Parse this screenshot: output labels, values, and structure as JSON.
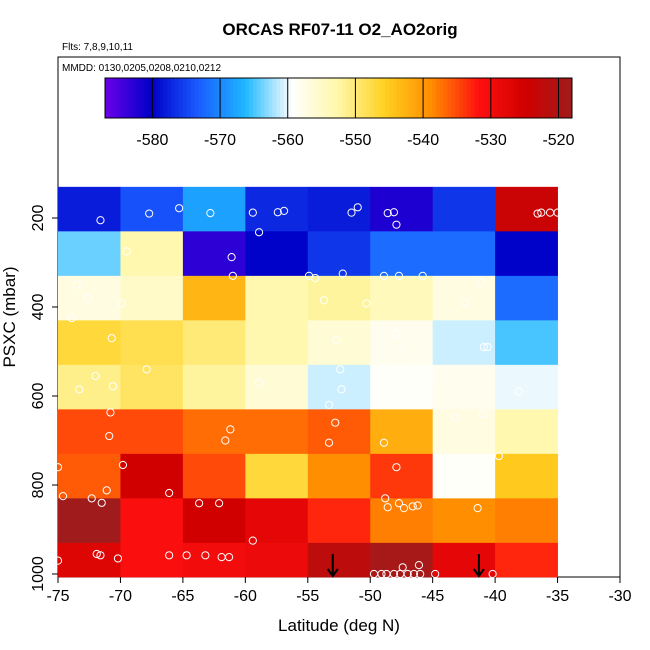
{
  "chart_data": {
    "type": "heatmap",
    "title": "ORCAS RF07-11 O2_AO2orig",
    "annotations": [
      "Flts: 7,8,9,10,11",
      "MMDD: 0130,0205,0208,0210,0212"
    ],
    "xlabel": "Latitude (deg N)",
    "ylabel": "PSXC (mbar)",
    "xlim": [
      -75,
      -30
    ],
    "ylim": [
      1000,
      100
    ],
    "xticks": [
      -75,
      -70,
      -65,
      -60,
      -55,
      -50,
      -45,
      -40,
      -35,
      -30
    ],
    "xtick_labels": [
      "-75",
      "-70",
      "-65",
      "-60",
      "-55",
      "-50",
      "-45",
      "-40",
      "-35",
      "-30"
    ],
    "yticks": [
      200,
      400,
      600,
      800,
      1000
    ],
    "ytick_labels": [
      "200",
      "400",
      "600",
      "800",
      "1000"
    ],
    "lat_bins": [
      -75,
      -70,
      -65,
      -60,
      -55,
      -50,
      -45,
      -40,
      -35
    ],
    "pressure_bins": [
      130,
      230,
      330,
      430,
      530,
      630,
      730,
      830,
      930,
      1030
    ],
    "z": [
      [
        -578,
        -574,
        -568,
        -577,
        -578,
        -582,
        -576,
        -524
      ],
      [
        -564,
        -553,
        -583,
        -580,
        -576,
        -572,
        -572,
        -580
      ],
      [
        -557,
        -555,
        -543,
        -553,
        -552,
        -554,
        -557,
        -572
      ],
      [
        -547,
        -548,
        -550,
        -553,
        -556,
        -558,
        -561,
        -565
      ],
      [
        -551,
        -549,
        -552,
        -556,
        -561,
        -559,
        -558,
        -560
      ],
      [
        -535,
        -535,
        -537,
        -537,
        -536,
        -542,
        -557,
        -553
      ],
      [
        -536,
        -525,
        -535,
        -547,
        -539,
        -534,
        -559,
        -545
      ],
      [
        -518,
        -531,
        -525,
        -528,
        -533,
        -538,
        -539,
        -538
      ],
      [
        -527,
        -531,
        -530,
        -529,
        -522,
        -519,
        -528,
        -533
      ]
    ],
    "colorbar": {
      "zlim": [
        -587,
        -518
      ],
      "ticks": [
        -580,
        -570,
        -560,
        -550,
        -540,
        -530,
        -520
      ],
      "tick_labels": [
        "-580",
        "-570",
        "-560",
        "-550",
        "-540",
        "-530",
        "-520"
      ],
      "colors": [
        "#6a00e8",
        "#0000c8",
        "#1a5cff",
        "#1eb8ff",
        "#ffffff",
        "#fff7a8",
        "#ffd020",
        "#ff8c00",
        "#ff1010",
        "#d00000",
        "#a01c1c"
      ]
    },
    "points": [
      [
        -71.6,
        205
      ],
      [
        -67.7,
        190
      ],
      [
        -65.3,
        178
      ],
      [
        -62.8,
        189
      ],
      [
        -59.4,
        188
      ],
      [
        -57.4,
        187
      ],
      [
        -56.9,
        184
      ],
      [
        -51.5,
        188
      ],
      [
        -51.0,
        176
      ],
      [
        -48.6,
        189
      ],
      [
        -48.1,
        187
      ],
      [
        -47.9,
        215
      ],
      [
        -36.6,
        190
      ],
      [
        -36.3,
        188
      ],
      [
        -35.6,
        188
      ],
      [
        -35.0,
        188
      ],
      [
        -69.5,
        275
      ],
      [
        -61.1,
        288
      ],
      [
        -58.9,
        232
      ],
      [
        -73.5,
        350
      ],
      [
        -72.6,
        380
      ],
      [
        -69.9,
        392
      ],
      [
        -61.0,
        330
      ],
      [
        -54.9,
        330
      ],
      [
        -54.4,
        335
      ],
      [
        -53.7,
        385
      ],
      [
        -52.2,
        325
      ],
      [
        -50.3,
        392
      ],
      [
        -48.9,
        330
      ],
      [
        -47.7,
        330
      ],
      [
        -45.8,
        330
      ],
      [
        -42.4,
        390
      ],
      [
        -41.1,
        345
      ],
      [
        -73.9,
        425
      ],
      [
        -70.7,
        470
      ],
      [
        -52.7,
        475
      ],
      [
        -47.9,
        460
      ],
      [
        -47.7,
        500
      ],
      [
        -40.9,
        490
      ],
      [
        -40.6,
        490
      ],
      [
        -73.3,
        585
      ],
      [
        -72.0,
        555
      ],
      [
        -70.6,
        578
      ],
      [
        -67.9,
        540
      ],
      [
        -58.9,
        570
      ],
      [
        -52.4,
        540
      ],
      [
        -52.3,
        585
      ],
      [
        -47.6,
        535
      ],
      [
        -45.1,
        555
      ],
      [
        -38.1,
        590
      ],
      [
        -70.8,
        637
      ],
      [
        -70.9,
        690
      ],
      [
        -61.6,
        700
      ],
      [
        -61.2,
        675
      ],
      [
        -53.3,
        620
      ],
      [
        -52.8,
        660
      ],
      [
        -53.3,
        705
      ],
      [
        -48.9,
        705
      ],
      [
        -43.2,
        648
      ],
      [
        -41.0,
        640
      ],
      [
        -39.7,
        735
      ],
      [
        -75.0,
        760
      ],
      [
        -69.8,
        755
      ],
      [
        -47.9,
        760
      ],
      [
        -74.6,
        825
      ],
      [
        -72.3,
        830
      ],
      [
        -71.5,
        840
      ],
      [
        -71.1,
        812
      ],
      [
        -66.1,
        818
      ],
      [
        -63.7,
        841
      ],
      [
        -62.1,
        841
      ],
      [
        -48.8,
        830
      ],
      [
        -48.6,
        850
      ],
      [
        -47.7,
        841
      ],
      [
        -47.3,
        852
      ],
      [
        -46.6,
        848
      ],
      [
        -46.2,
        846
      ],
      [
        -41.4,
        852
      ],
      [
        -75.0,
        970
      ],
      [
        -71.9,
        955
      ],
      [
        -71.6,
        958
      ],
      [
        -70.2,
        965
      ],
      [
        -66.1,
        958
      ],
      [
        -64.7,
        958
      ],
      [
        -63.2,
        958
      ],
      [
        -61.9,
        962
      ],
      [
        -61.3,
        962
      ],
      [
        -59.4,
        925
      ],
      [
        -49.7,
        1000
      ],
      [
        -49.1,
        1000
      ],
      [
        -48.7,
        1000
      ],
      [
        -48.1,
        1000
      ],
      [
        -47.6,
        1000
      ],
      [
        -47.0,
        1000
      ],
      [
        -46.5,
        1000
      ],
      [
        -46.0,
        1000
      ],
      [
        -47.4,
        985
      ],
      [
        -46.1,
        980
      ],
      [
        -44.8,
        1000
      ],
      [
        -40.2,
        1000
      ]
    ],
    "arrows": [
      [
        -53.0,
        1000
      ],
      [
        -41.3,
        1000
      ]
    ]
  }
}
